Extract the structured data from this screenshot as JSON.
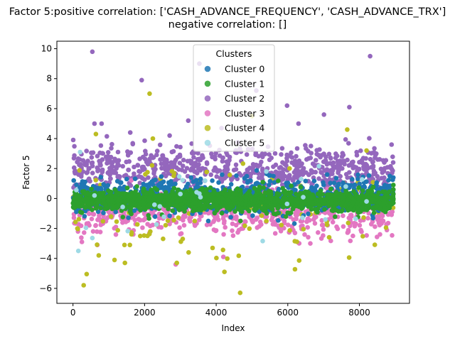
{
  "chart_data": {
    "type": "scatter",
    "title_lines": [
      "Factor 5:positive correlation: ['CASH_ADVANCE_FREQUENCY', 'CASH_ADVANCE_TRX']",
      "negative correlation: []"
    ],
    "xlabel": "Index",
    "ylabel": "Factor 5",
    "xlim": [
      -450,
      9400
    ],
    "ylim": [
      -7,
      10.5
    ],
    "x_ticks": [
      0,
      2000,
      4000,
      6000,
      8000
    ],
    "y_ticks": [
      -6,
      -4,
      -2,
      0,
      2,
      4,
      6,
      8,
      10
    ],
    "grid": false,
    "legend": {
      "title": "Clusters",
      "placement": "top-center"
    },
    "series": [
      {
        "name": "Cluster 0",
        "color": "#1f77b4",
        "n": 900,
        "x_range": [
          0,
          8950
        ],
        "y_center": 0.15,
        "y_spread": 0.55,
        "points": [
          [
            20,
            1.2
          ],
          [
            1500,
            1.3
          ],
          [
            3300,
            1.4
          ],
          [
            5600,
            1.5
          ],
          [
            7100,
            1.6
          ],
          [
            8850,
            1.5
          ],
          [
            8950,
            1.4
          ]
        ]
      },
      {
        "name": "Cluster 1",
        "color": "#2ca02c",
        "n": 1400,
        "x_range": [
          0,
          8950
        ],
        "y_center": -0.15,
        "y_spread": 0.35,
        "points": [
          [
            4680,
            -1.5
          ],
          [
            8950,
            0.9
          ],
          [
            8950,
            0.6
          ],
          [
            8950,
            0.3
          ],
          [
            8950,
            0.0
          ],
          [
            8950,
            -0.3
          ]
        ]
      },
      {
        "name": "Cluster 2",
        "color": "#9467bd",
        "n": 700,
        "x_range": [
          0,
          8950
        ],
        "y_center": 2.0,
        "y_spread": 0.7,
        "points": [
          [
            540,
            9.8
          ],
          [
            8300,
            9.5
          ],
          [
            3530,
            9.0
          ],
          [
            1920,
            7.9
          ],
          [
            5120,
            7.2
          ],
          [
            5980,
            6.2
          ],
          [
            7010,
            5.6
          ],
          [
            7720,
            6.1
          ],
          [
            3220,
            5.2
          ],
          [
            6300,
            5.0
          ],
          [
            600,
            5.0
          ],
          [
            800,
            5.0
          ],
          [
            1600,
            4.4
          ],
          [
            4150,
            4.7
          ],
          [
            2700,
            4.2
          ],
          [
            8900,
            3.6
          ]
        ]
      },
      {
        "name": "Cluster 3",
        "color": "#e377c2",
        "n": 650,
        "x_range": [
          0,
          8950
        ],
        "y_center": -1.0,
        "y_spread": 0.7,
        "points": [
          [
            2870,
            -4.4
          ],
          [
            4200,
            -3.9
          ],
          [
            680,
            -3.1
          ],
          [
            250,
            -2.9
          ],
          [
            6200,
            -2.3
          ],
          [
            6630,
            -3.0
          ],
          [
            4750,
            -2.0
          ],
          [
            140,
            -2.2
          ],
          [
            7820,
            -2.5
          ]
        ]
      },
      {
        "name": "Cluster 4",
        "color": "#bcbd22",
        "n": 130,
        "x_range": [
          0,
          8950
        ],
        "y_center": -0.8,
        "y_spread": 1.5,
        "points": [
          [
            4670,
            -6.3
          ],
          [
            4230,
            -4.9
          ],
          [
            1160,
            -4.1
          ],
          [
            1450,
            -4.3
          ],
          [
            2900,
            -4.3
          ],
          [
            3230,
            -3.6
          ],
          [
            3900,
            -3.3
          ],
          [
            2160,
            -2.2
          ],
          [
            720,
            -3.8
          ],
          [
            2140,
            7.0
          ],
          [
            2230,
            4.0
          ],
          [
            640,
            4.3
          ],
          [
            5000,
            5.5
          ],
          [
            7660,
            4.6
          ],
          [
            8200,
            3.2
          ],
          [
            6050,
            2.0
          ]
        ]
      },
      {
        "name": "Cluster 5",
        "color": "#9edae5",
        "n": 24,
        "x_range": [
          0,
          8950
        ],
        "y_center": 0.0,
        "y_spread": 1.6,
        "points": [
          [
            150,
            -3.5
          ],
          [
            200,
            3.1
          ],
          [
            5400,
            1.8
          ],
          [
            7050,
            -1.4
          ],
          [
            600,
            0.2
          ],
          [
            3000,
            0.3
          ],
          [
            8200,
            -0.2
          ]
        ]
      }
    ]
  }
}
